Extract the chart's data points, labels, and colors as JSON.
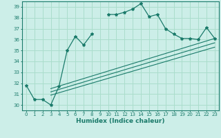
{
  "xlabel": "Humidex (Indice chaleur)",
  "bg_color": "#cceee8",
  "grid_color": "#aaddcc",
  "line_color": "#1a7a6a",
  "xlim": [
    -0.5,
    23.5
  ],
  "ylim": [
    29.5,
    39.5
  ],
  "xticks": [
    0,
    1,
    2,
    3,
    4,
    5,
    6,
    7,
    8,
    9,
    10,
    11,
    12,
    13,
    14,
    15,
    16,
    17,
    18,
    19,
    20,
    21,
    22,
    23
  ],
  "yticks": [
    30,
    31,
    32,
    33,
    34,
    35,
    36,
    37,
    38,
    39
  ],
  "main_x": [
    0,
    1,
    2,
    3,
    4,
    5,
    6,
    7,
    8,
    9,
    10,
    11,
    12,
    13,
    14,
    15,
    16,
    17,
    18,
    19,
    20,
    21,
    22,
    23
  ],
  "main_y": [
    31.8,
    30.5,
    30.5,
    30.0,
    31.7,
    35.0,
    36.3,
    35.5,
    36.5,
    null,
    38.3,
    38.3,
    38.5,
    38.8,
    39.3,
    38.1,
    38.3,
    37.0,
    36.5,
    36.1,
    36.1,
    36.0,
    37.1,
    36.1
  ],
  "line1_x": [
    3,
    23
  ],
  "line1_y": [
    31.5,
    36.1
  ],
  "line2_x": [
    3,
    23
  ],
  "line2_y": [
    31.2,
    35.7
  ],
  "line3_x": [
    3,
    23
  ],
  "line3_y": [
    30.9,
    35.3
  ]
}
